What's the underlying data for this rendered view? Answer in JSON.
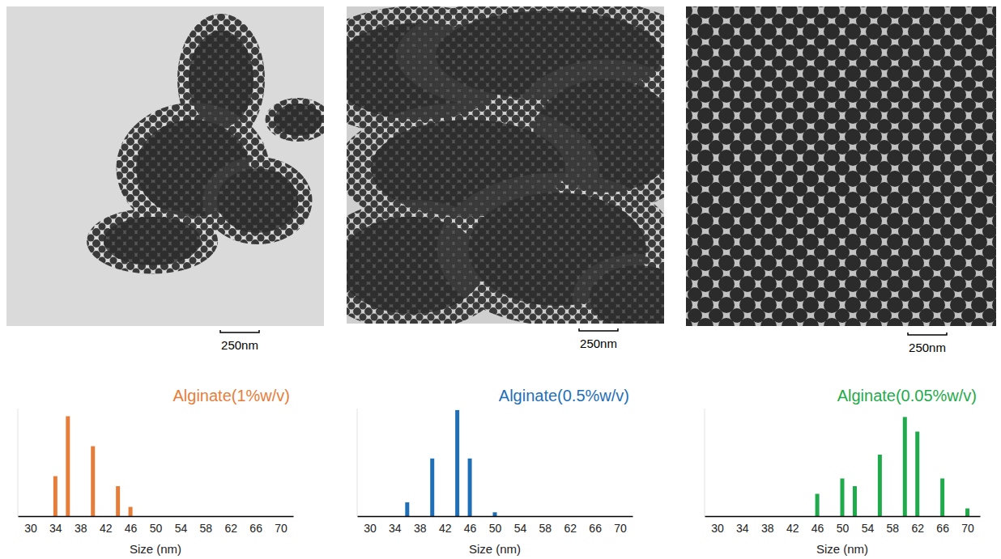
{
  "chart_data": [
    {
      "type": "bar",
      "title": "Alginate(1%w/v)",
      "x_label": "Size (nm)",
      "x": [
        34,
        36,
        40,
        44,
        46
      ],
      "values": [
        52,
        130,
        91,
        39,
        12
      ],
      "color": "#e67e3a",
      "xlim": [
        28,
        72
      ],
      "xticks": [
        30,
        34,
        38,
        42,
        46,
        50,
        54,
        58,
        62,
        66,
        70
      ],
      "ylim": [
        0,
        140
      ],
      "tick_labels": "x",
      "annotations": [
        "250nm"
      ]
    },
    {
      "type": "bar",
      "title": "Alginate(0.5%w/v)",
      "x_label": "Size (nm)",
      "x": [
        36,
        40,
        44,
        46,
        50
      ],
      "values": [
        18,
        75,
        138,
        75,
        5
      ],
      "color": "#1f6fb8",
      "xlim": [
        28,
        72
      ],
      "xticks": [
        30,
        34,
        38,
        42,
        46,
        50,
        54,
        58,
        62,
        66,
        70
      ],
      "ylim": [
        0,
        140
      ],
      "tick_labels": "x",
      "annotations": [
        "250nm"
      ]
    },
    {
      "type": "bar",
      "title": "Alginate(0.05%w/v)",
      "x_label": "Size (nm)",
      "x": [
        46,
        50,
        52,
        56,
        60,
        62,
        66,
        70
      ],
      "values": [
        29,
        49,
        39,
        80,
        129,
        110,
        49,
        10
      ],
      "color": "#1faa4b",
      "xlim": [
        28,
        72
      ],
      "xticks": [
        30,
        34,
        38,
        42,
        46,
        50,
        54,
        58,
        62,
        66,
        70
      ],
      "ylim": [
        0,
        140
      ],
      "tick_labels": "x",
      "annotations": [
        "250nm"
      ]
    }
  ]
}
